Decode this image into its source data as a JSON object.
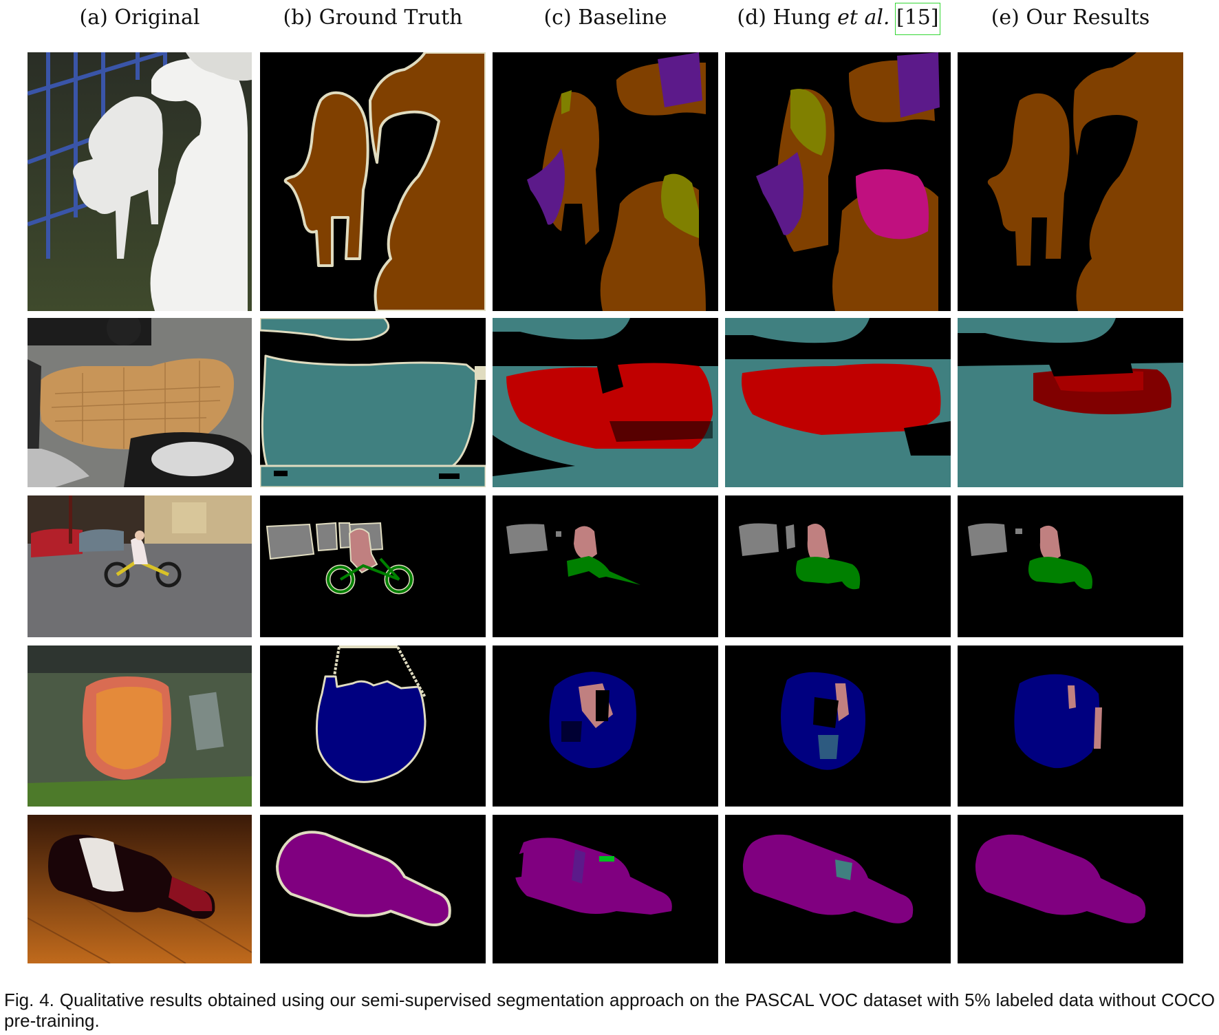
{
  "columns": [
    {
      "prefix": "(a) Original",
      "italic": "",
      "suffix": "",
      "cite": ""
    },
    {
      "prefix": "(b) Ground Truth",
      "italic": "",
      "suffix": "",
      "cite": ""
    },
    {
      "prefix": "(c) Baseline",
      "italic": "",
      "suffix": "",
      "cite": ""
    },
    {
      "prefix": "(d) Hung ",
      "italic": "et al.",
      "suffix": " ",
      "cite": "[15]"
    },
    {
      "prefix": "(e) Our Results",
      "italic": "",
      "suffix": "",
      "cite": ""
    }
  ],
  "rows": [
    "sheep",
    "motorbike-seat",
    "cyclist",
    "boat",
    "bottle"
  ],
  "colors": {
    "background": "#000000",
    "boundary": "#e0dcc0",
    "sheep": "#804000",
    "cow": "#808000",
    "dog": "#5c1a8a",
    "horse": "#c0107f",
    "motorbike": "#408080",
    "car": "#c00000",
    "car_dark": "#800000",
    "person": "#c08080",
    "bicycle": "#008000",
    "boat": "#000080",
    "bottle": "#800080"
  },
  "caption": "Fig. 4. Qualitative results obtained using our semi-supervised segmentation approach on the PASCAL VOC dataset with 5% labeled data without COCO pre-training."
}
